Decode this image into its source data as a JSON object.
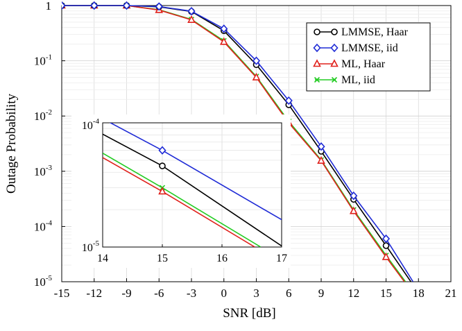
{
  "chart_data": [
    {
      "type": "line",
      "xlabel": "SNR [dB]",
      "ylabel": "Outage Probability",
      "xlim": [
        -15,
        21
      ],
      "ylim": [
        1e-05,
        1
      ],
      "yscale": "log",
      "grid": true,
      "xticks": [
        "-15",
        "-12",
        "-9",
        "-6",
        "-3",
        "0",
        "3",
        "6",
        "9",
        "12",
        "15",
        "18",
        "21"
      ],
      "yticks": [
        {
          "base": "10",
          "exp": "-5"
        },
        {
          "base": "10",
          "exp": "-4"
        },
        {
          "base": "10",
          "exp": "-3"
        },
        {
          "base": "10",
          "exp": "-2"
        },
        {
          "base": "10",
          "exp": "-1"
        },
        {
          "base": "1",
          "exp": ""
        }
      ],
      "legend_position": "top-right",
      "series": [
        {
          "name": "LMMSE, Haar",
          "color": "#000000",
          "marker": "circle",
          "x": [
            -15,
            -12,
            -9,
            -6,
            -3,
            0,
            3,
            6,
            9,
            12,
            15,
            17.3
          ],
          "y": [
            1,
            1,
            1,
            0.95,
            0.78,
            0.35,
            0.085,
            0.016,
            0.0023,
            0.00031,
            4.5e-05,
            1e-05
          ]
        },
        {
          "name": "LMMSE, iid",
          "color": "#1f2bd6",
          "marker": "diamond",
          "x": [
            -15,
            -12,
            -9,
            -6,
            -3,
            0,
            3,
            6,
            9,
            12,
            15,
            17.5
          ],
          "y": [
            1,
            1,
            1,
            0.96,
            0.79,
            0.38,
            0.1,
            0.019,
            0.0028,
            0.00036,
            6e-05,
            1e-05
          ]
        },
        {
          "name": "ML, Haar",
          "color": "#e0201b",
          "marker": "triangle",
          "x": [
            -15,
            -12,
            -9,
            -6,
            -3,
            0,
            3,
            6,
            9,
            12,
            15,
            16.7
          ],
          "y": [
            1,
            1,
            1,
            0.83,
            0.55,
            0.22,
            0.05,
            0.0075,
            0.00155,
            0.00019,
            2.8e-05,
            1e-05
          ]
        },
        {
          "name": "ML, iid",
          "color": "#22cc22",
          "marker": "x",
          "x": [
            -15,
            -12,
            -9,
            -6,
            -3,
            0,
            3,
            6,
            9,
            12,
            15,
            16.8
          ],
          "y": [
            1,
            1,
            1,
            0.84,
            0.56,
            0.23,
            0.052,
            0.008,
            0.0016,
            0.0002,
            3e-05,
            1e-05
          ]
        }
      ]
    },
    {
      "type": "line",
      "title": "",
      "xlim": [
        14,
        17
      ],
      "ylim": [
        1e-05,
        0.0001
      ],
      "yscale": "log",
      "grid": true,
      "xticks": [
        "14",
        "15",
        "16",
        "17"
      ],
      "yticks": [
        {
          "base": "10",
          "exp": "-5"
        },
        {
          "base": "10",
          "exp": "-4"
        }
      ],
      "series": [
        {
          "name": "LMMSE, Haar",
          "color": "#000000",
          "marker": "circle",
          "x": [
            14,
            15,
            17
          ],
          "y": [
            8.1e-05,
            4.5e-05,
            1.02e-05
          ]
        },
        {
          "name": "LMMSE, iid",
          "color": "#1f2bd6",
          "marker": "diamond",
          "x": [
            14,
            15,
            17
          ],
          "y": [
            0.000108,
            6e-05,
            1.66e-05
          ]
        },
        {
          "name": "ML, Haar",
          "color": "#e0201b",
          "marker": "triangle",
          "x": [
            14,
            15,
            16.55
          ],
          "y": [
            5.25e-05,
            2.8e-05,
            1e-05
          ]
        },
        {
          "name": "ML, iid",
          "color": "#22cc22",
          "marker": "x",
          "x": [
            14,
            15,
            16.65
          ],
          "y": [
            5.7e-05,
            3e-05,
            1e-05
          ]
        }
      ]
    }
  ]
}
